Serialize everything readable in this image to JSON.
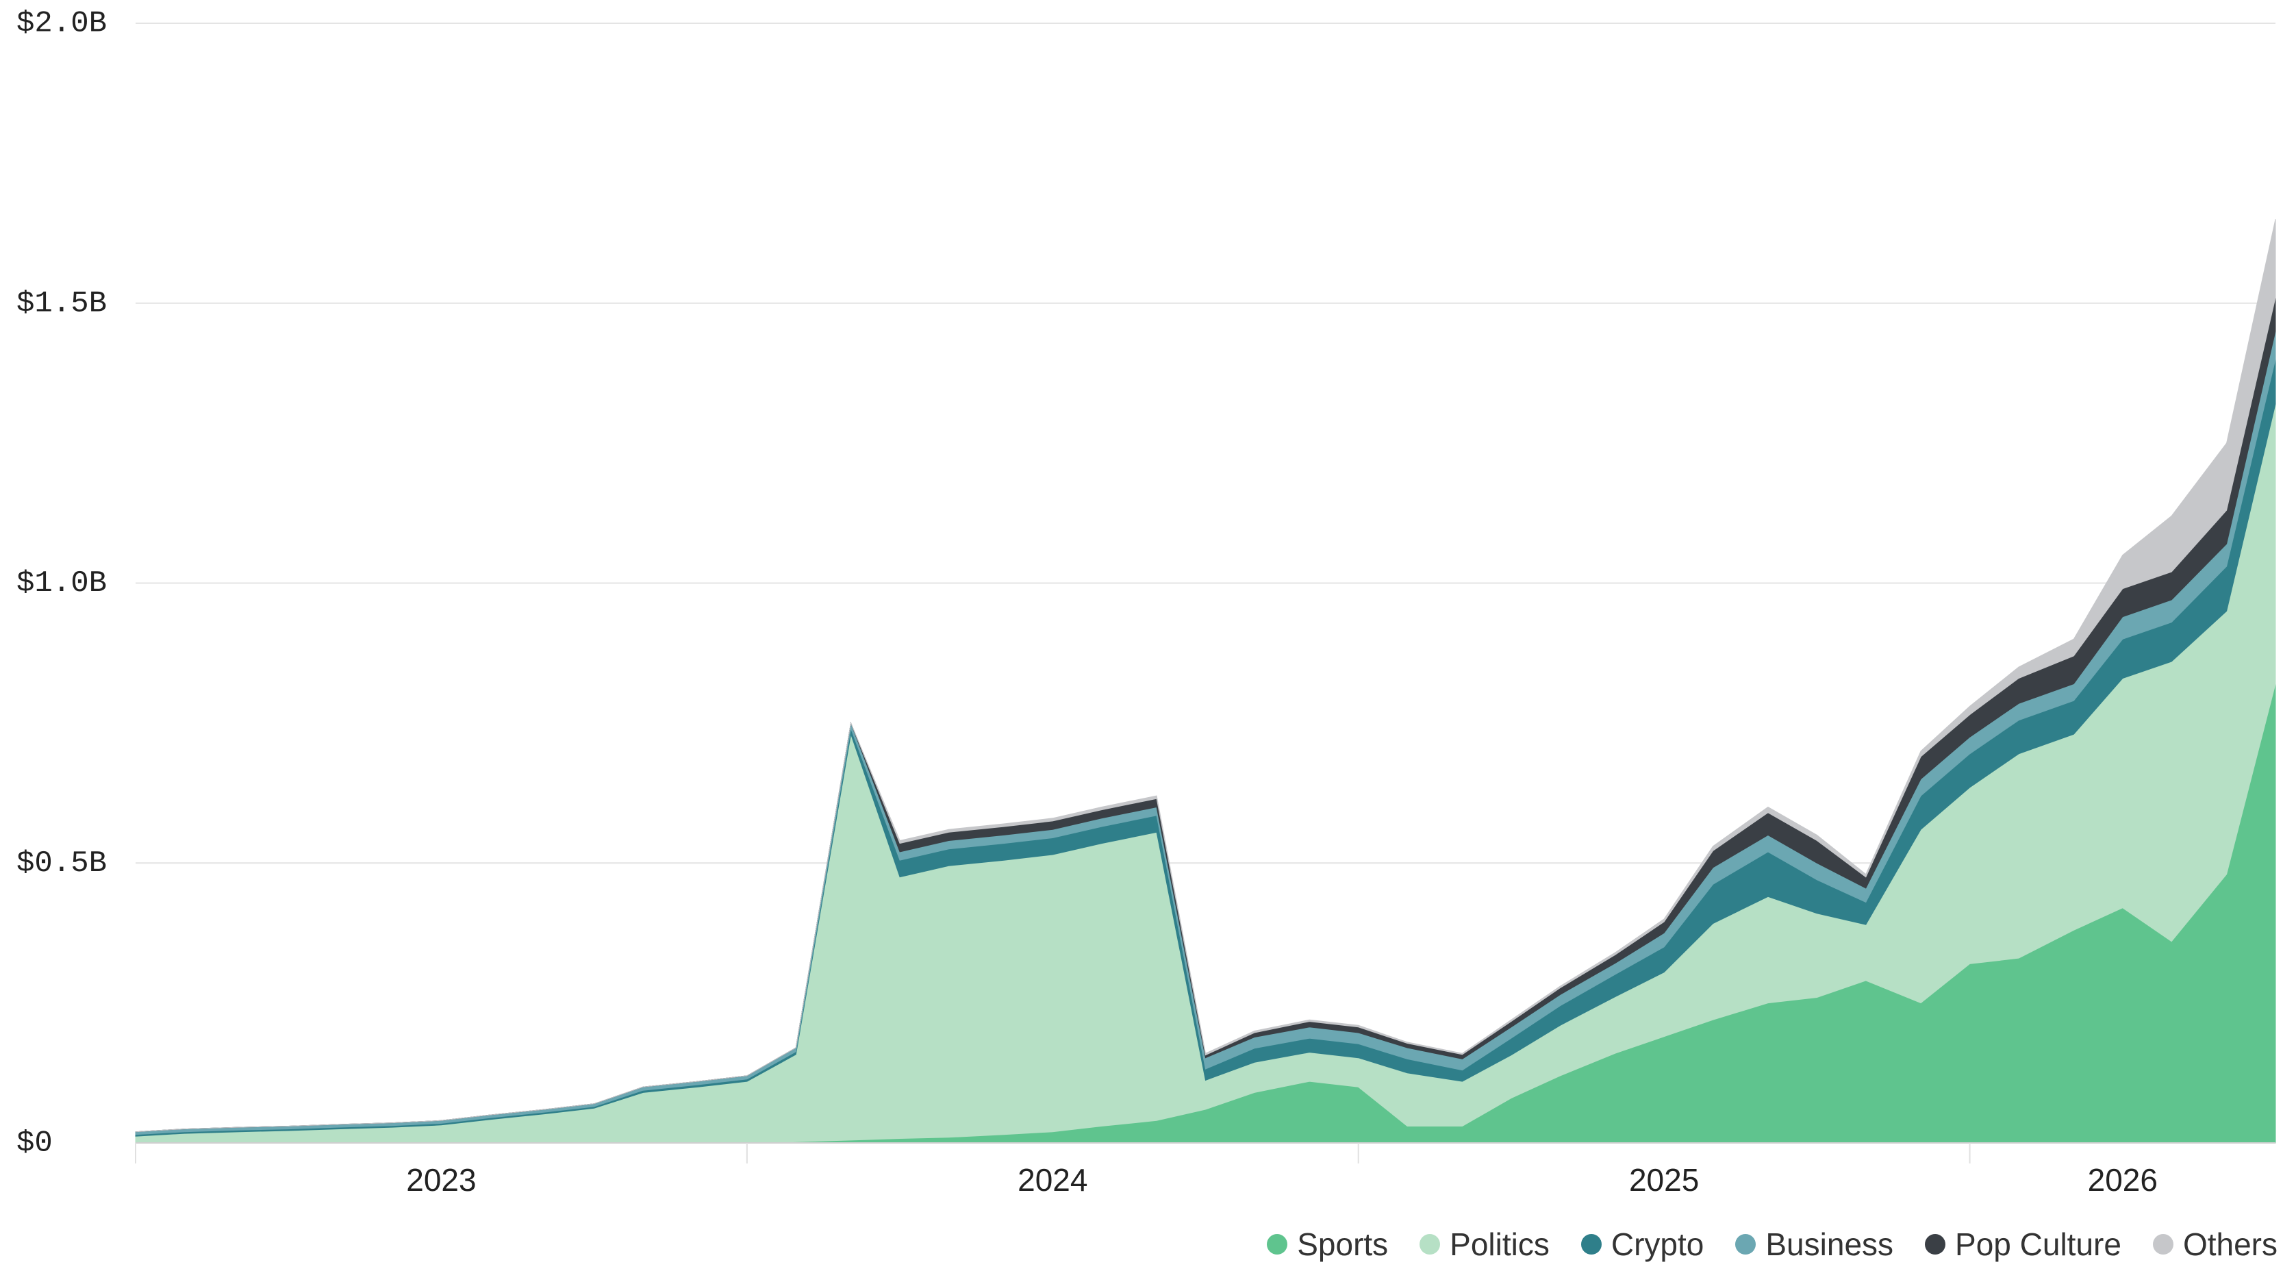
{
  "chart_data": {
    "type": "stacked_area",
    "x": [
      2023.0,
      2023.08,
      2023.17,
      2023.25,
      2023.33,
      2023.42,
      2023.5,
      2023.58,
      2023.67,
      2023.75,
      2023.83,
      2023.92,
      2024.0,
      2024.08,
      2024.17,
      2024.25,
      2024.33,
      2024.42,
      2024.5,
      2024.58,
      2024.67,
      2024.75,
      2024.83,
      2024.92,
      2025.0,
      2025.08,
      2025.17,
      2025.25,
      2025.33,
      2025.42,
      2025.5,
      2025.58,
      2025.67,
      2025.75,
      2025.83,
      2025.92,
      2026.0,
      2026.08,
      2026.17,
      2026.25,
      2026.33,
      2026.42,
      2026.5
    ],
    "xlim": [
      2023.0,
      2026.5
    ],
    "xticks": [
      {
        "value": 2023.5,
        "label": "2023"
      },
      {
        "value": 2024.5,
        "label": "2024"
      },
      {
        "value": 2025.5,
        "label": "2025"
      },
      {
        "value": 2026.25,
        "label": "2026"
      }
    ],
    "x_boundaries": [
      2023,
      2024,
      2025,
      2026
    ],
    "ylim": [
      0,
      2.0
    ],
    "yticks": [
      {
        "value": 0,
        "label": "$0"
      },
      {
        "value": 0.5,
        "label": "$0.5B"
      },
      {
        "value": 1.0,
        "label": "$1.0B"
      },
      {
        "value": 1.5,
        "label": "$1.5B"
      },
      {
        "value": 2.0,
        "label": "$2.0B"
      }
    ],
    "grid": true,
    "legend": "bottom-right",
    "series": [
      {
        "name": "Sports",
        "color": "#5fc48e",
        "values": [
          0,
          0,
          0,
          0,
          0,
          0,
          0,
          0,
          0,
          0,
          0,
          0,
          0,
          0.002,
          0.005,
          0.008,
          0.01,
          0.015,
          0.02,
          0.03,
          0.04,
          0.06,
          0.09,
          0.11,
          0.1,
          0.03,
          0.03,
          0.08,
          0.12,
          0.16,
          0.19,
          0.22,
          0.25,
          0.26,
          0.29,
          0.25,
          0.32,
          0.33,
          0.38,
          0.42,
          0.36,
          0.48,
          0.82
        ]
      },
      {
        "name": "Politics",
        "color": "#b6e0c5",
        "values": [
          0.012,
          0.017,
          0.02,
          0.022,
          0.025,
          0.028,
          0.032,
          0.042,
          0.052,
          0.062,
          0.09,
          0.1,
          0.11,
          0.156,
          0.725,
          0.467,
          0.485,
          0.49,
          0.495,
          0.505,
          0.515,
          0.052,
          0.054,
          0.052,
          0.052,
          0.095,
          0.08,
          0.077,
          0.09,
          0.101,
          0.115,
          0.172,
          0.19,
          0.15,
          0.1,
          0.31,
          0.315,
          0.365,
          0.35,
          0.41,
          0.5,
          0.47,
          0.5
        ]
      },
      {
        "name": "Crypto",
        "color": "#2f7f8a",
        "values": [
          0.003,
          0.003,
          0.003,
          0.003,
          0.003,
          0.003,
          0.003,
          0.003,
          0.003,
          0.003,
          0.004,
          0.004,
          0.004,
          0.005,
          0.01,
          0.03,
          0.03,
          0.03,
          0.03,
          0.03,
          0.03,
          0.02,
          0.025,
          0.025,
          0.025,
          0.025,
          0.02,
          0.03,
          0.035,
          0.04,
          0.045,
          0.07,
          0.08,
          0.06,
          0.04,
          0.06,
          0.06,
          0.06,
          0.06,
          0.07,
          0.07,
          0.08,
          0.08
        ]
      },
      {
        "name": "Business",
        "color": "#6ba7b2",
        "values": [
          0.005,
          0.005,
          0.005,
          0.005,
          0.005,
          0.005,
          0.005,
          0.005,
          0.005,
          0.005,
          0.006,
          0.006,
          0.006,
          0.007,
          0.01,
          0.015,
          0.015,
          0.015,
          0.015,
          0.015,
          0.015,
          0.02,
          0.02,
          0.02,
          0.02,
          0.02,
          0.02,
          0.02,
          0.02,
          0.02,
          0.025,
          0.03,
          0.03,
          0.03,
          0.025,
          0.03,
          0.03,
          0.03,
          0.03,
          0.04,
          0.04,
          0.04,
          0.05
        ]
      },
      {
        "name": "Pop Culture",
        "color": "#3a3f45",
        "values": [
          0,
          0,
          0,
          0,
          0,
          0,
          0,
          0,
          0,
          0,
          0,
          0,
          0,
          0,
          0,
          0.015,
          0.015,
          0.015,
          0.015,
          0.015,
          0.015,
          0.005,
          0.008,
          0.01,
          0.01,
          0.008,
          0.008,
          0.01,
          0.012,
          0.015,
          0.02,
          0.03,
          0.04,
          0.04,
          0.02,
          0.04,
          0.04,
          0.045,
          0.05,
          0.05,
          0.05,
          0.06,
          0.06
        ]
      },
      {
        "name": "Others",
        "color": "#c6c7ca",
        "values": [
          0,
          0,
          0,
          0,
          0,
          0,
          0,
          0,
          0,
          0,
          0,
          0,
          0,
          0,
          0,
          0.005,
          0.005,
          0.005,
          0.005,
          0.005,
          0.005,
          0.003,
          0.003,
          0.003,
          0.003,
          0.002,
          0.002,
          0.003,
          0.003,
          0.004,
          0.005,
          0.008,
          0.01,
          0.01,
          0.005,
          0.01,
          0.015,
          0.02,
          0.03,
          0.06,
          0.1,
          0.12,
          0.14
        ]
      }
    ]
  }
}
